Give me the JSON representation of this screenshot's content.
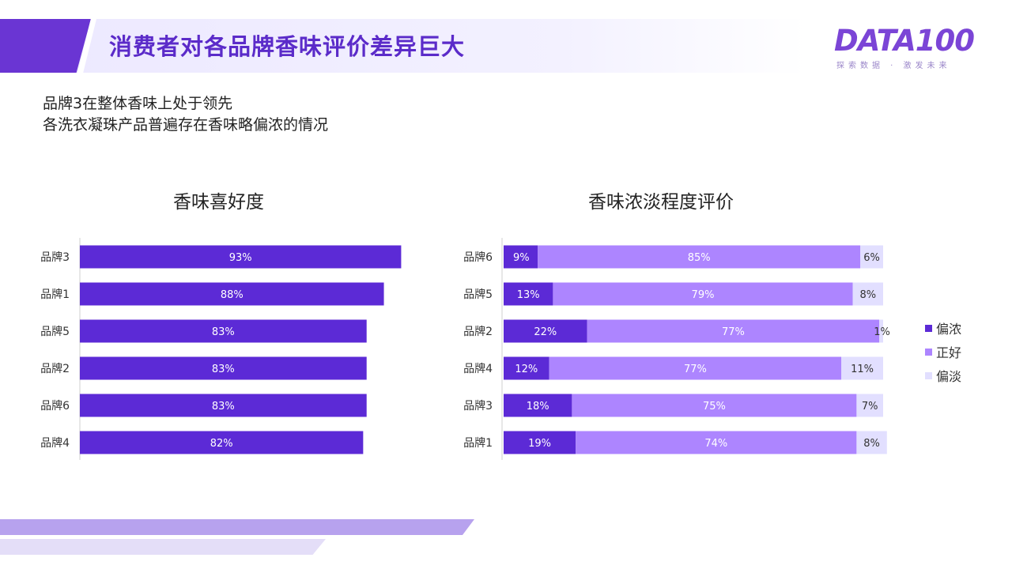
{
  "header": {
    "title": "消费者对各品牌香味评价差异巨大",
    "logo_text": "DATA100",
    "logo_tagline": "探索数据 · 激发未来"
  },
  "subtitle_lines": [
    "品牌3在整体香味上处于领先",
    "各洗衣凝珠产品普遍存在香味略偏浓的情况"
  ],
  "colors": {
    "accent": "#6a35d3",
    "dark": "#5c2ad6",
    "mid": "#ad85ff",
    "light": "#e2dfff"
  },
  "chart_data": [
    {
      "type": "bar",
      "orientation": "horizontal",
      "title": "香味喜好度",
      "categories": [
        "品牌3",
        "品牌1",
        "品牌5",
        "品牌2",
        "品牌6",
        "品牌4"
      ],
      "values": [
        93,
        88,
        83,
        83,
        83,
        82
      ],
      "data_labels": [
        "93%",
        "88%",
        "83%",
        "83%",
        "83%",
        "82%"
      ],
      "xlim": [
        0,
        100
      ],
      "grid": false
    },
    {
      "type": "bar",
      "orientation": "horizontal",
      "stacked": true,
      "title": "香味浓淡程度评价",
      "categories": [
        "品牌6",
        "品牌5",
        "品牌2",
        "品牌4",
        "品牌3",
        "品牌1"
      ],
      "series": [
        {
          "name": "偏浓",
          "color": "#5c2ad6",
          "values": [
            9,
            13,
            22,
            12,
            18,
            19
          ],
          "labels": [
            "9%",
            "13%",
            "22%",
            "12%",
            "18%",
            "19%"
          ]
        },
        {
          "name": "正好",
          "color": "#ad85ff",
          "values": [
            85,
            79,
            77,
            77,
            75,
            74
          ],
          "labels": [
            "85%",
            "79%",
            "77%",
            "77%",
            "75%",
            "74%"
          ]
        },
        {
          "name": "偏淡",
          "color": "#e2dfff",
          "values": [
            6,
            8,
            1,
            11,
            7,
            8
          ],
          "labels": [
            "6%",
            "8%",
            "1%",
            "11%",
            "7%",
            "8%"
          ]
        }
      ],
      "xlim": [
        0,
        100
      ],
      "legend": "right",
      "grid": false
    }
  ]
}
